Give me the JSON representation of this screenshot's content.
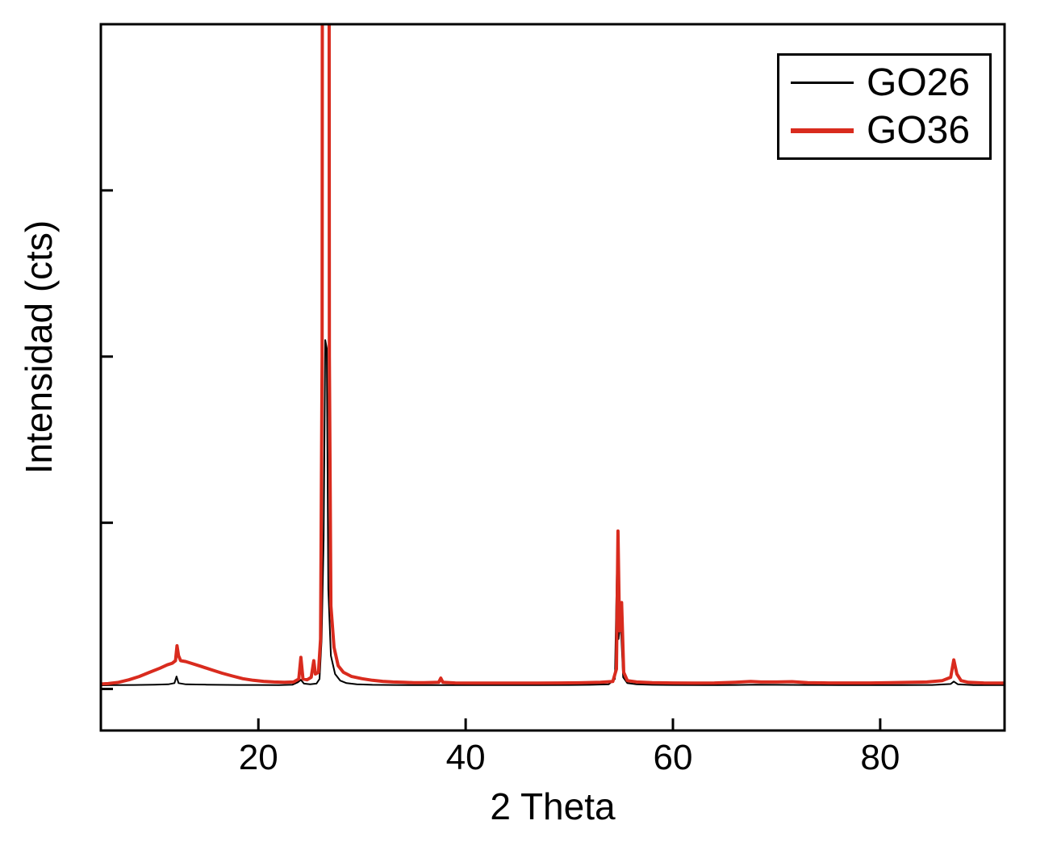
{
  "figure": {
    "background": "#ffffff",
    "axis_color": "#000000"
  },
  "chart_data": {
    "type": "line",
    "title": "",
    "xlabel": "2 Theta",
    "ylabel": "Intensidad (cts)",
    "xlim": [
      4.8,
      92
    ],
    "ylim": [
      -250,
      4000
    ],
    "x_ticks": [
      20,
      40,
      60,
      80
    ],
    "y_ticks": [
      0,
      1000,
      2000,
      3000
    ],
    "y_tick_labels_visible": false,
    "grid": false,
    "legend_position": "top-right",
    "series": [
      {
        "name": "GO26",
        "color": "#000000",
        "width": 2,
        "points": [
          [
            4.8,
            22
          ],
          [
            6,
            23
          ],
          [
            8,
            24
          ],
          [
            10,
            26
          ],
          [
            11.3,
            28
          ],
          [
            11.9,
            35
          ],
          [
            12.1,
            75
          ],
          [
            12.3,
            35
          ],
          [
            13,
            28
          ],
          [
            14,
            27
          ],
          [
            15,
            26
          ],
          [
            16,
            25
          ],
          [
            18,
            24
          ],
          [
            20,
            24
          ],
          [
            22,
            23
          ],
          [
            23.3,
            26
          ],
          [
            23.8,
            40
          ],
          [
            24.1,
            55
          ],
          [
            24.4,
            32
          ],
          [
            25,
            28
          ],
          [
            25.6,
            32
          ],
          [
            25.9,
            60
          ],
          [
            26.1,
            300
          ],
          [
            26.3,
            900
          ],
          [
            26.45,
            2100
          ],
          [
            26.6,
            2050
          ],
          [
            26.75,
            600
          ],
          [
            27.0,
            200
          ],
          [
            27.4,
            90
          ],
          [
            27.9,
            50
          ],
          [
            28.5,
            35
          ],
          [
            29.5,
            28
          ],
          [
            31,
            25
          ],
          [
            33,
            24
          ],
          [
            35,
            23
          ],
          [
            38,
            23
          ],
          [
            41,
            23
          ],
          [
            44,
            23
          ],
          [
            47,
            23
          ],
          [
            50,
            24
          ],
          [
            52,
            25
          ],
          [
            53.8,
            28
          ],
          [
            54.4,
            60
          ],
          [
            54.6,
            720
          ],
          [
            54.75,
            300
          ],
          [
            54.95,
            420
          ],
          [
            55.2,
            70
          ],
          [
            55.6,
            35
          ],
          [
            56.5,
            28
          ],
          [
            58,
            25
          ],
          [
            60,
            24
          ],
          [
            63,
            23
          ],
          [
            66,
            24
          ],
          [
            68,
            26
          ],
          [
            70,
            25
          ],
          [
            73,
            24
          ],
          [
            76,
            23
          ],
          [
            79,
            23
          ],
          [
            82,
            23
          ],
          [
            85,
            24
          ],
          [
            86.8,
            30
          ],
          [
            87.1,
            45
          ],
          [
            87.5,
            28
          ],
          [
            89,
            23
          ],
          [
            91.9,
            23
          ]
        ]
      },
      {
        "name": "GO36",
        "color": "#d92b1e",
        "width": 4,
        "points": [
          [
            4.8,
            30
          ],
          [
            5.5,
            32
          ],
          [
            6.5,
            40
          ],
          [
            7.5,
            55
          ],
          [
            8.5,
            75
          ],
          [
            9.5,
            100
          ],
          [
            10.5,
            125
          ],
          [
            11.2,
            145
          ],
          [
            11.7,
            155
          ],
          [
            12.0,
            170
          ],
          [
            12.15,
            260
          ],
          [
            12.3,
            200
          ],
          [
            12.5,
            170
          ],
          [
            13.0,
            165
          ],
          [
            13.5,
            155
          ],
          [
            14.5,
            135
          ],
          [
            15.5,
            115
          ],
          [
            16.5,
            95
          ],
          [
            17.5,
            78
          ],
          [
            18.5,
            62
          ],
          [
            19.5,
            52
          ],
          [
            20.5,
            46
          ],
          [
            21.5,
            42
          ],
          [
            22.5,
            40
          ],
          [
            23.4,
            42
          ],
          [
            23.9,
            60
          ],
          [
            24.1,
            190
          ],
          [
            24.3,
            60
          ],
          [
            24.7,
            55
          ],
          [
            25.1,
            70
          ],
          [
            25.35,
            170
          ],
          [
            25.5,
            90
          ],
          [
            25.8,
            100
          ],
          [
            26.0,
            300
          ],
          [
            26.15,
            2000
          ],
          [
            26.25,
            12000
          ],
          [
            26.75,
            12000
          ],
          [
            26.85,
            2000
          ],
          [
            27.0,
            500
          ],
          [
            27.3,
            250
          ],
          [
            27.7,
            140
          ],
          [
            28.2,
            100
          ],
          [
            29,
            75
          ],
          [
            30,
            62
          ],
          [
            31,
            52
          ],
          [
            32,
            46
          ],
          [
            33,
            42
          ],
          [
            34,
            40
          ],
          [
            35,
            38
          ],
          [
            36,
            38
          ],
          [
            37.4,
            40
          ],
          [
            37.6,
            65
          ],
          [
            37.8,
            40
          ],
          [
            39,
            36
          ],
          [
            41,
            35
          ],
          [
            43,
            35
          ],
          [
            45,
            35
          ],
          [
            47,
            35
          ],
          [
            49,
            36
          ],
          [
            51,
            37
          ],
          [
            53,
            40
          ],
          [
            54.2,
            45
          ],
          [
            54.55,
            120
          ],
          [
            54.7,
            950
          ],
          [
            54.85,
            350
          ],
          [
            55.05,
            520
          ],
          [
            55.25,
            100
          ],
          [
            55.6,
            50
          ],
          [
            56.5,
            42
          ],
          [
            58,
            38
          ],
          [
            60,
            36
          ],
          [
            62,
            35
          ],
          [
            64,
            36
          ],
          [
            66,
            40
          ],
          [
            67.5,
            45
          ],
          [
            68.5,
            42
          ],
          [
            70,
            42
          ],
          [
            71.5,
            44
          ],
          [
            73,
            38
          ],
          [
            75,
            36
          ],
          [
            77,
            36
          ],
          [
            79,
            36
          ],
          [
            81,
            38
          ],
          [
            83,
            40
          ],
          [
            84.5,
            42
          ],
          [
            86,
            50
          ],
          [
            86.8,
            70
          ],
          [
            87.1,
            175
          ],
          [
            87.4,
            90
          ],
          [
            87.8,
            50
          ],
          [
            88.5,
            40
          ],
          [
            90,
            36
          ],
          [
            91.9,
            35
          ]
        ]
      }
    ]
  }
}
